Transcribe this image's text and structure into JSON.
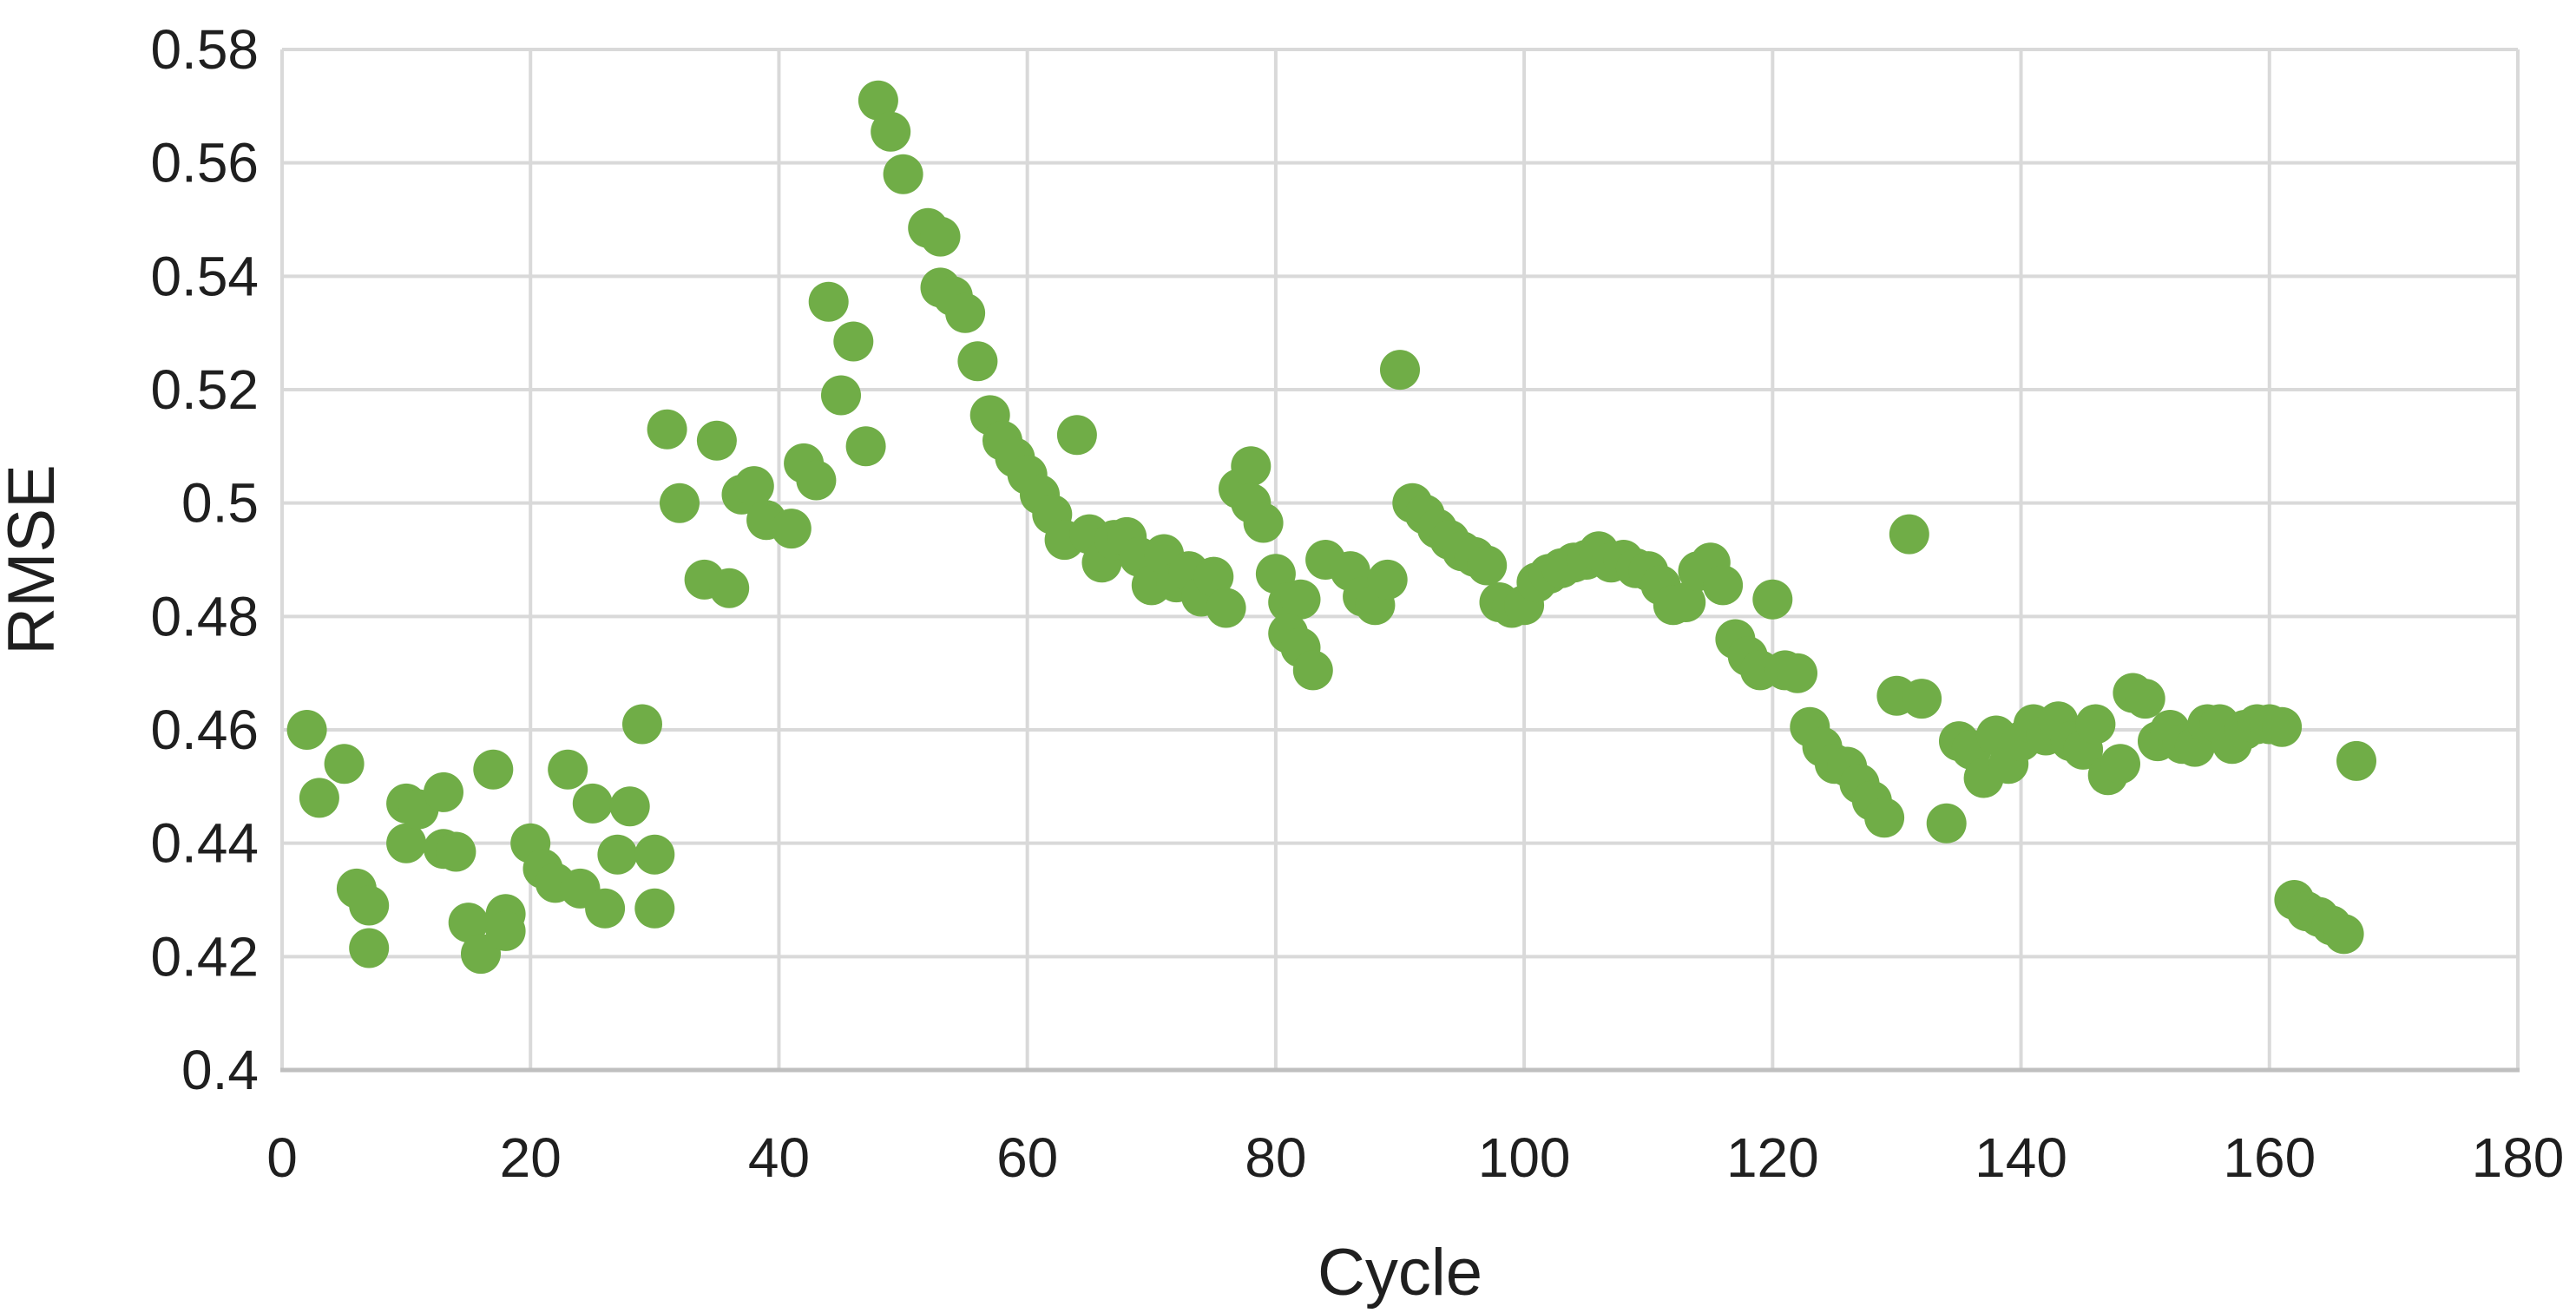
{
  "chart_data": {
    "type": "scatter",
    "title": "",
    "xlabel": "Cycle",
    "ylabel": "RMSE",
    "xlim": [
      0,
      180
    ],
    "ylim": [
      0.4,
      0.58
    ],
    "x_tick_labels": [
      "0",
      "20",
      "40",
      "60",
      "80",
      "100",
      "120",
      "140",
      "160",
      "180"
    ],
    "y_tick_labels": [
      "0.4",
      "0.42",
      "0.44",
      "0.46",
      "0.48",
      "0.5",
      "0.52",
      "0.54",
      "0.56",
      "0.58"
    ],
    "grid": true,
    "legend_position": "none",
    "marker_color": "#70AD47",
    "gridline_color": "#D9D9D9",
    "axis_line_color": "#BFBFBF",
    "text_color": "#1f1f1f",
    "series": [
      {
        "name": "RMSE",
        "points": [
          [
            2,
            0.46
          ],
          [
            3,
            0.448
          ],
          [
            5,
            0.454
          ],
          [
            6,
            0.432
          ],
          [
            7,
            0.429
          ],
          [
            7,
            0.4215
          ],
          [
            10,
            0.447
          ],
          [
            10,
            0.44
          ],
          [
            11,
            0.446
          ],
          [
            13,
            0.449
          ],
          [
            13,
            0.439
          ],
          [
            14,
            0.4385
          ],
          [
            15,
            0.426
          ],
          [
            16,
            0.4205
          ],
          [
            17,
            0.453
          ],
          [
            18,
            0.4275
          ],
          [
            18,
            0.4245
          ],
          [
            20,
            0.44
          ],
          [
            21,
            0.4355
          ],
          [
            22,
            0.433
          ],
          [
            23,
            0.453
          ],
          [
            24,
            0.432
          ],
          [
            25,
            0.447
          ],
          [
            26,
            0.4285
          ],
          [
            27,
            0.438
          ],
          [
            28,
            0.4465
          ],
          [
            29,
            0.461
          ],
          [
            30,
            0.438
          ],
          [
            30,
            0.4285
          ],
          [
            31,
            0.513
          ],
          [
            32,
            0.5
          ],
          [
            34,
            0.4865
          ],
          [
            35,
            0.511
          ],
          [
            36,
            0.485
          ],
          [
            37,
            0.5015
          ],
          [
            38,
            0.503
          ],
          [
            39,
            0.497
          ],
          [
            41,
            0.4955
          ],
          [
            42,
            0.507
          ],
          [
            43,
            0.504
          ],
          [
            44,
            0.5355
          ],
          [
            45,
            0.519
          ],
          [
            46,
            0.5285
          ],
          [
            47,
            0.51
          ],
          [
            48,
            0.571
          ],
          [
            49,
            0.5655
          ],
          [
            50,
            0.558
          ],
          [
            52,
            0.5485
          ],
          [
            53,
            0.547
          ],
          [
            53,
            0.538
          ],
          [
            54,
            0.5365
          ],
          [
            55,
            0.5335
          ],
          [
            56,
            0.525
          ],
          [
            57,
            0.5155
          ],
          [
            58,
            0.511
          ],
          [
            59,
            0.508
          ],
          [
            60,
            0.505
          ],
          [
            61,
            0.5015
          ],
          [
            62,
            0.498
          ],
          [
            63,
            0.4935
          ],
          [
            64,
            0.512
          ],
          [
            65,
            0.4945
          ],
          [
            66,
            0.4895
          ],
          [
            67,
            0.4935
          ],
          [
            68,
            0.494
          ],
          [
            69,
            0.4905
          ],
          [
            70,
            0.4855
          ],
          [
            71,
            0.491
          ],
          [
            72,
            0.486
          ],
          [
            73,
            0.488
          ],
          [
            74,
            0.4835
          ],
          [
            75,
            0.487
          ],
          [
            76,
            0.4815
          ],
          [
            77,
            0.5025
          ],
          [
            78,
            0.5065
          ],
          [
            78,
            0.5
          ],
          [
            79,
            0.4965
          ],
          [
            80,
            0.4875
          ],
          [
            81,
            0.4825
          ],
          [
            82,
            0.483
          ],
          [
            81,
            0.477
          ],
          [
            82,
            0.4745
          ],
          [
            83,
            0.4705
          ],
          [
            84,
            0.49
          ],
          [
            86,
            0.488
          ],
          [
            87,
            0.4835
          ],
          [
            88,
            0.482
          ],
          [
            89,
            0.4865
          ],
          [
            90,
            0.5235
          ],
          [
            91,
            0.5
          ],
          [
            92,
            0.498
          ],
          [
            93,
            0.4955
          ],
          [
            94,
            0.4935
          ],
          [
            95,
            0.4915
          ],
          [
            96,
            0.4905
          ],
          [
            97,
            0.489
          ],
          [
            98,
            0.4825
          ],
          [
            99,
            0.4815
          ],
          [
            100,
            0.482
          ],
          [
            101,
            0.486
          ],
          [
            102,
            0.4875
          ],
          [
            103,
            0.4885
          ],
          [
            104,
            0.4895
          ],
          [
            105,
            0.49
          ],
          [
            106,
            0.4915
          ],
          [
            107,
            0.4895
          ],
          [
            108,
            0.49
          ],
          [
            109,
            0.4885
          ],
          [
            110,
            0.488
          ],
          [
            111,
            0.4855
          ],
          [
            112,
            0.482
          ],
          [
            113,
            0.4825
          ],
          [
            114,
            0.488
          ],
          [
            115,
            0.4895
          ],
          [
            116,
            0.4855
          ],
          [
            117,
            0.476
          ],
          [
            118,
            0.473
          ],
          [
            119,
            0.4705
          ],
          [
            120,
            0.483
          ],
          [
            121,
            0.4705
          ],
          [
            122,
            0.47
          ],
          [
            123,
            0.4605
          ],
          [
            124,
            0.457
          ],
          [
            125,
            0.454
          ],
          [
            126,
            0.4535
          ],
          [
            127,
            0.4505
          ],
          [
            128,
            0.4475
          ],
          [
            129,
            0.4445
          ],
          [
            130,
            0.466
          ],
          [
            131,
            0.4945
          ],
          [
            132,
            0.4655
          ],
          [
            134,
            0.4435
          ],
          [
            135,
            0.458
          ],
          [
            136,
            0.4565
          ],
          [
            137,
            0.4515
          ],
          [
            138,
            0.459
          ],
          [
            139,
            0.454
          ],
          [
            140,
            0.458
          ],
          [
            141,
            0.461
          ],
          [
            142,
            0.459
          ],
          [
            143,
            0.4615
          ],
          [
            144,
            0.458
          ],
          [
            145,
            0.4565
          ],
          [
            146,
            0.461
          ],
          [
            147,
            0.452
          ],
          [
            148,
            0.454
          ],
          [
            149,
            0.4665
          ],
          [
            150,
            0.4655
          ],
          [
            151,
            0.458
          ],
          [
            152,
            0.46
          ],
          [
            153,
            0.4575
          ],
          [
            154,
            0.457
          ],
          [
            155,
            0.461
          ],
          [
            156,
            0.461
          ],
          [
            157,
            0.4575
          ],
          [
            158,
            0.46
          ],
          [
            159,
            0.461
          ],
          [
            160,
            0.461
          ],
          [
            161,
            0.4605
          ],
          [
            162,
            0.43
          ],
          [
            163,
            0.428
          ],
          [
            164,
            0.427
          ],
          [
            165,
            0.4255
          ],
          [
            166,
            0.424
          ],
          [
            167,
            0.4545
          ]
        ]
      }
    ]
  }
}
